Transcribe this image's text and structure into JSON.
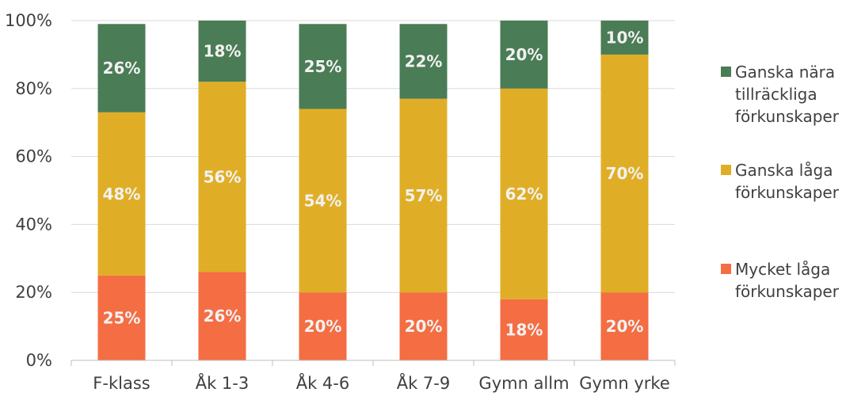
{
  "chart_data": {
    "type": "bar",
    "stacked": true,
    "categories": [
      "F-klass",
      "Åk 1-3",
      "Åk 4-6",
      "Åk 7-9",
      "Gymn allm",
      "Gymn yrke"
    ],
    "series": [
      {
        "name": "Mycket låga förkunskaper",
        "name_lines": [
          "Mycket låga",
          "förkunskaper"
        ],
        "color": "#f46d43",
        "values": [
          25,
          26,
          20,
          20,
          18,
          20
        ],
        "labels": [
          "25%",
          "26%",
          "20%",
          "20%",
          "18%",
          "20%"
        ]
      },
      {
        "name": "Ganska låga förkunskaper",
        "name_lines": [
          "Ganska låga",
          "förkunskaper"
        ],
        "color": "#e0ae26",
        "values": [
          48,
          56,
          54,
          57,
          62,
          70
        ],
        "labels": [
          "48%",
          "56%",
          "54%",
          "57%",
          "62%",
          "70%"
        ]
      },
      {
        "name": "Ganska nära tillräckliga förkunskaper",
        "name_lines": [
          "Ganska nära",
          "tillräckliga",
          "förkunskaper"
        ],
        "color": "#4a7c55",
        "values": [
          26,
          18,
          25,
          22,
          20,
          10
        ],
        "labels": [
          "26%",
          "18%",
          "25%",
          "22%",
          "20%",
          "10%"
        ]
      }
    ],
    "ylim": [
      0,
      100
    ],
    "yticks": [
      "0%",
      "20%",
      "40%",
      "60%",
      "80%",
      "100%"
    ],
    "grid": true,
    "legend": "right"
  }
}
